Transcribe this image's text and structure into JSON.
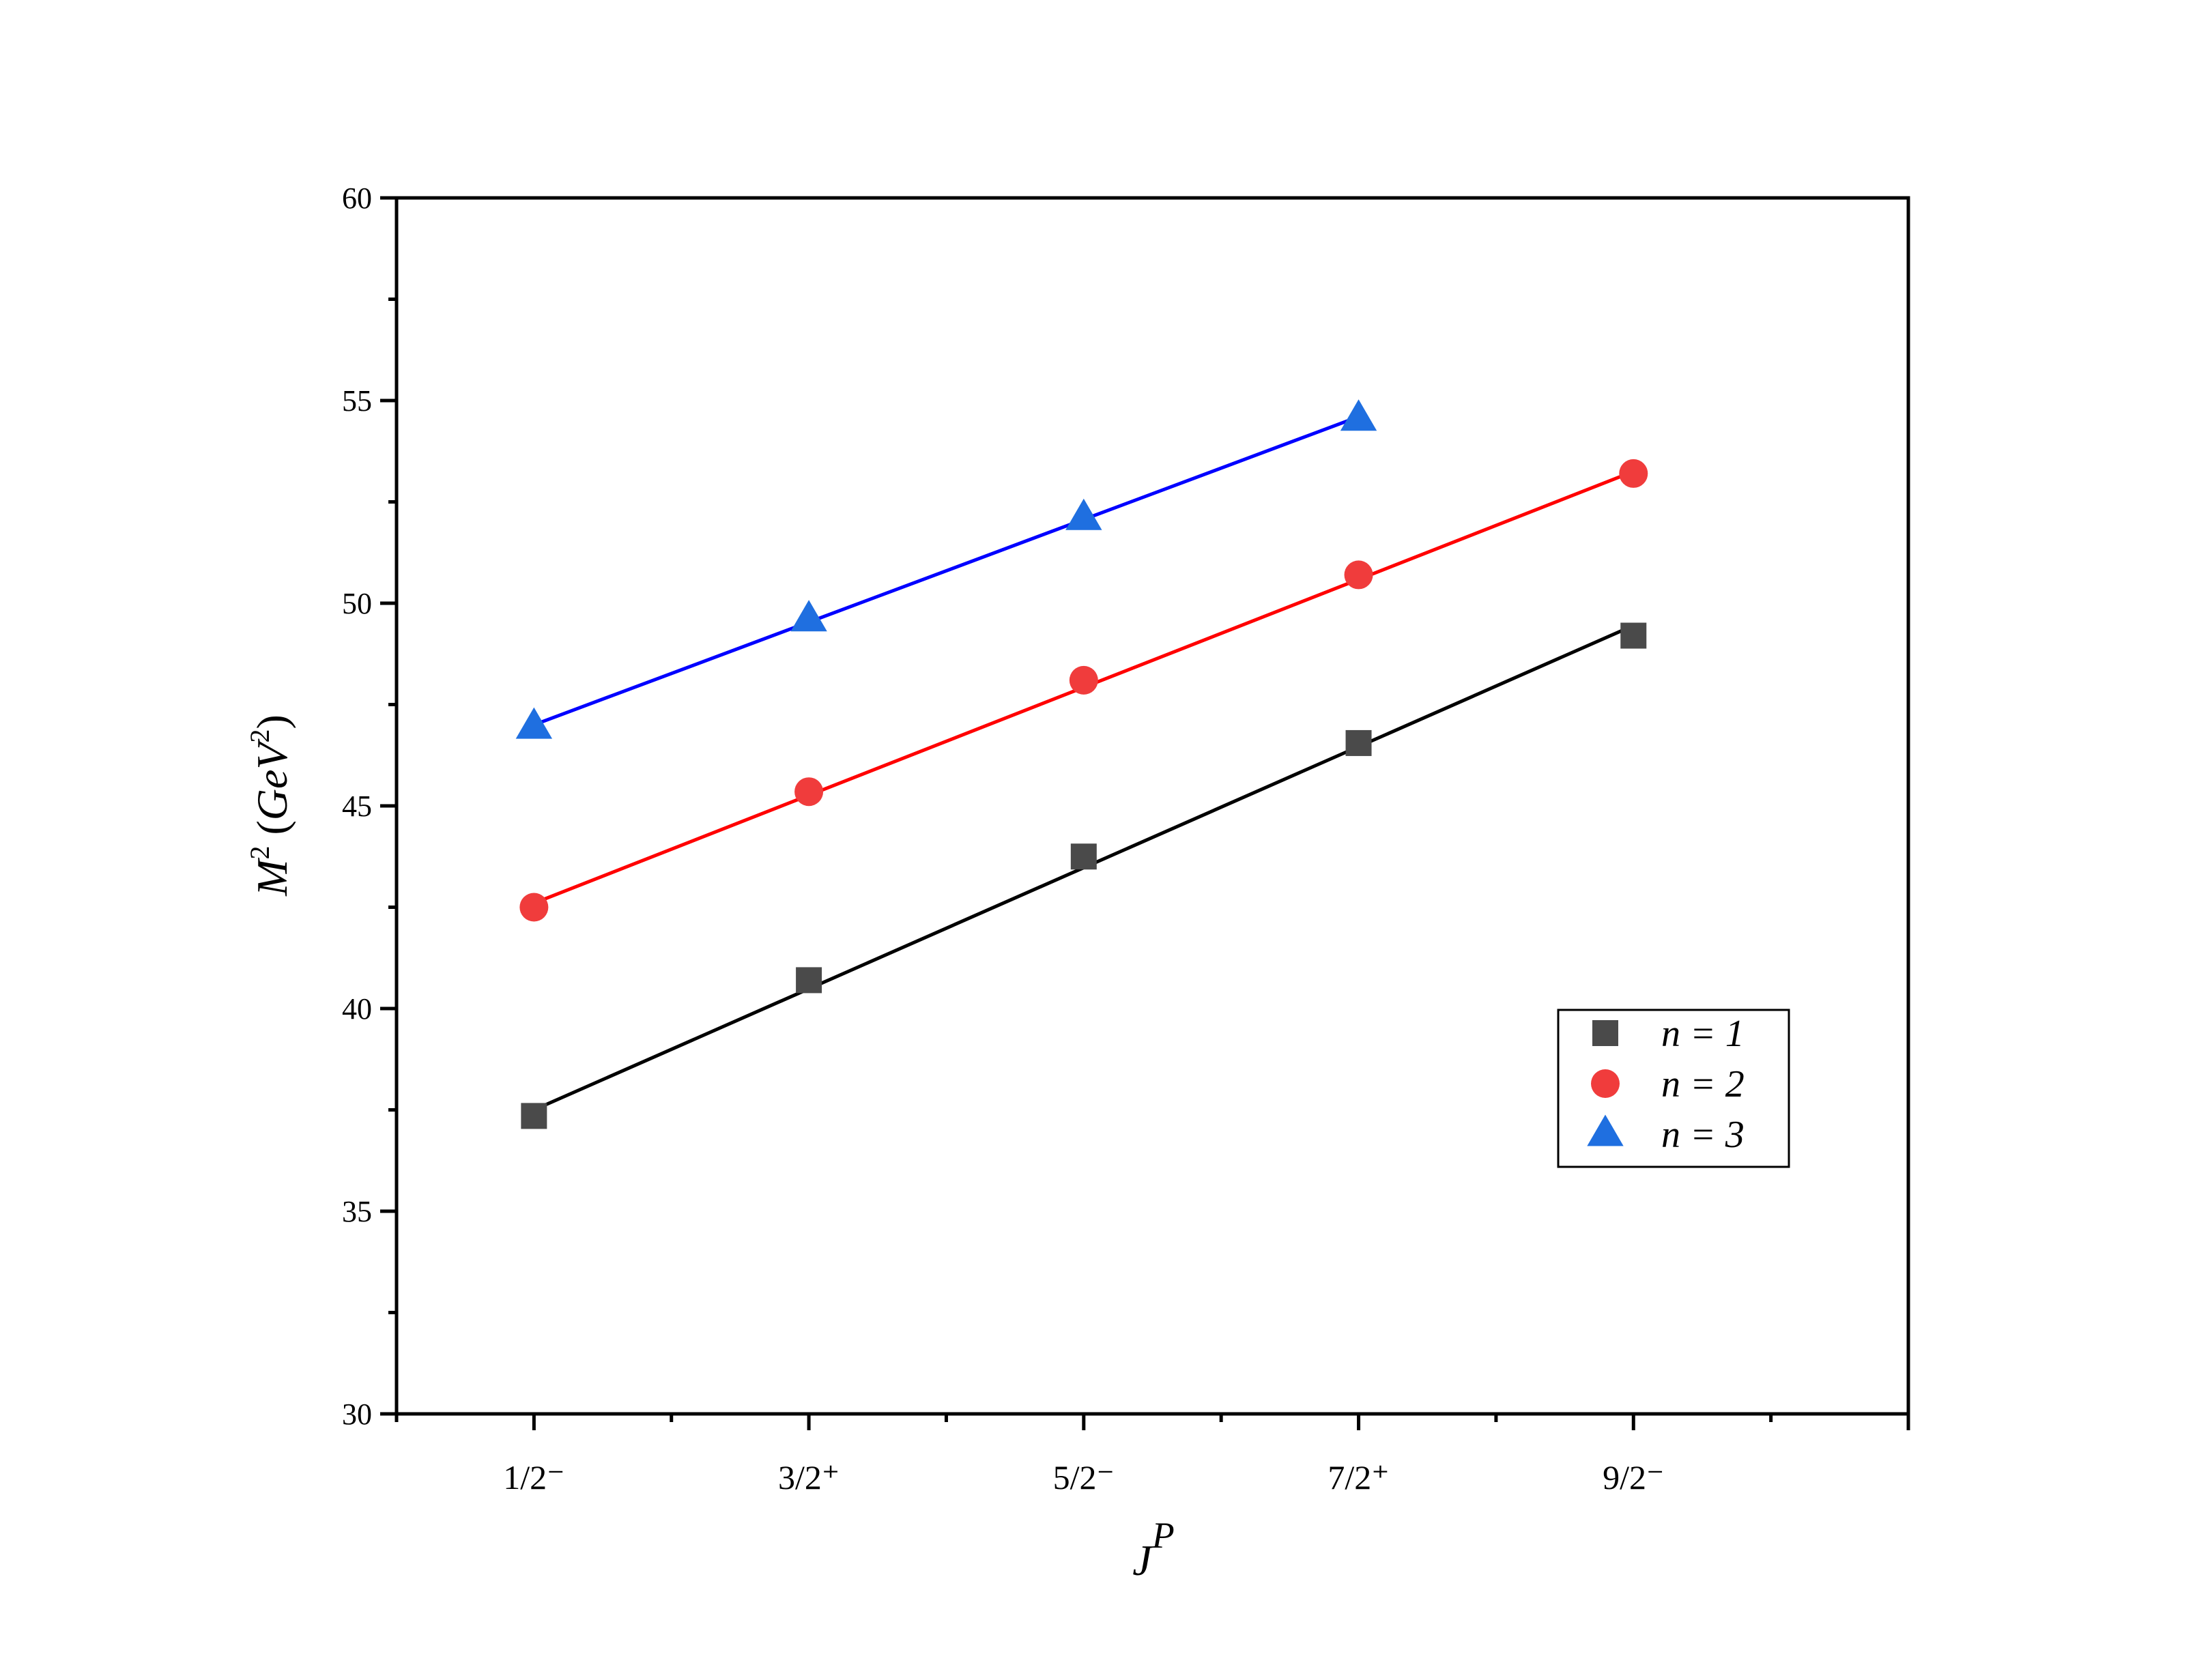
{
  "chart_data": {
    "type": "scatter",
    "title": "",
    "xlabel": "J^P",
    "ylabel": "M^2 (GeV^2)",
    "ylim": [
      30,
      60
    ],
    "xlim": [
      0.5,
      6
    ],
    "yticks": [
      30,
      35,
      40,
      45,
      50,
      55,
      60
    ],
    "categories": [
      "1/2⁻",
      "3/2⁺",
      "5/2⁻",
      "7/2⁺",
      "9/2⁻"
    ],
    "category_x": [
      1,
      2,
      3,
      4,
      5
    ],
    "legend_position": "center-right",
    "grid": false,
    "series": [
      {
        "name": "n = 1",
        "marker": "square",
        "color": "#4a4a4a",
        "line_color": "#000000",
        "x": [
          1,
          2,
          3,
          4,
          5
        ],
        "y": [
          37.35,
          40.7,
          43.75,
          46.55,
          49.2
        ],
        "fit": [
          37.5,
          49.45
        ]
      },
      {
        "name": "n = 2",
        "marker": "circle",
        "color": "#f03c3c",
        "line_color": "#ff0000",
        "x": [
          1,
          2,
          3,
          4,
          5
        ],
        "y": [
          42.5,
          45.35,
          48.1,
          50.7,
          53.2
        ],
        "fit": [
          42.6,
          53.25
        ]
      },
      {
        "name": "n = 3",
        "marker": "triangle",
        "color": "#1f6fe0",
        "line_color": "#0000ff",
        "x": [
          1,
          2,
          3,
          4
        ],
        "y": [
          46.95,
          49.6,
          52.1,
          54.55
        ],
        "fit": [
          47.0,
          54.6
        ]
      }
    ]
  }
}
